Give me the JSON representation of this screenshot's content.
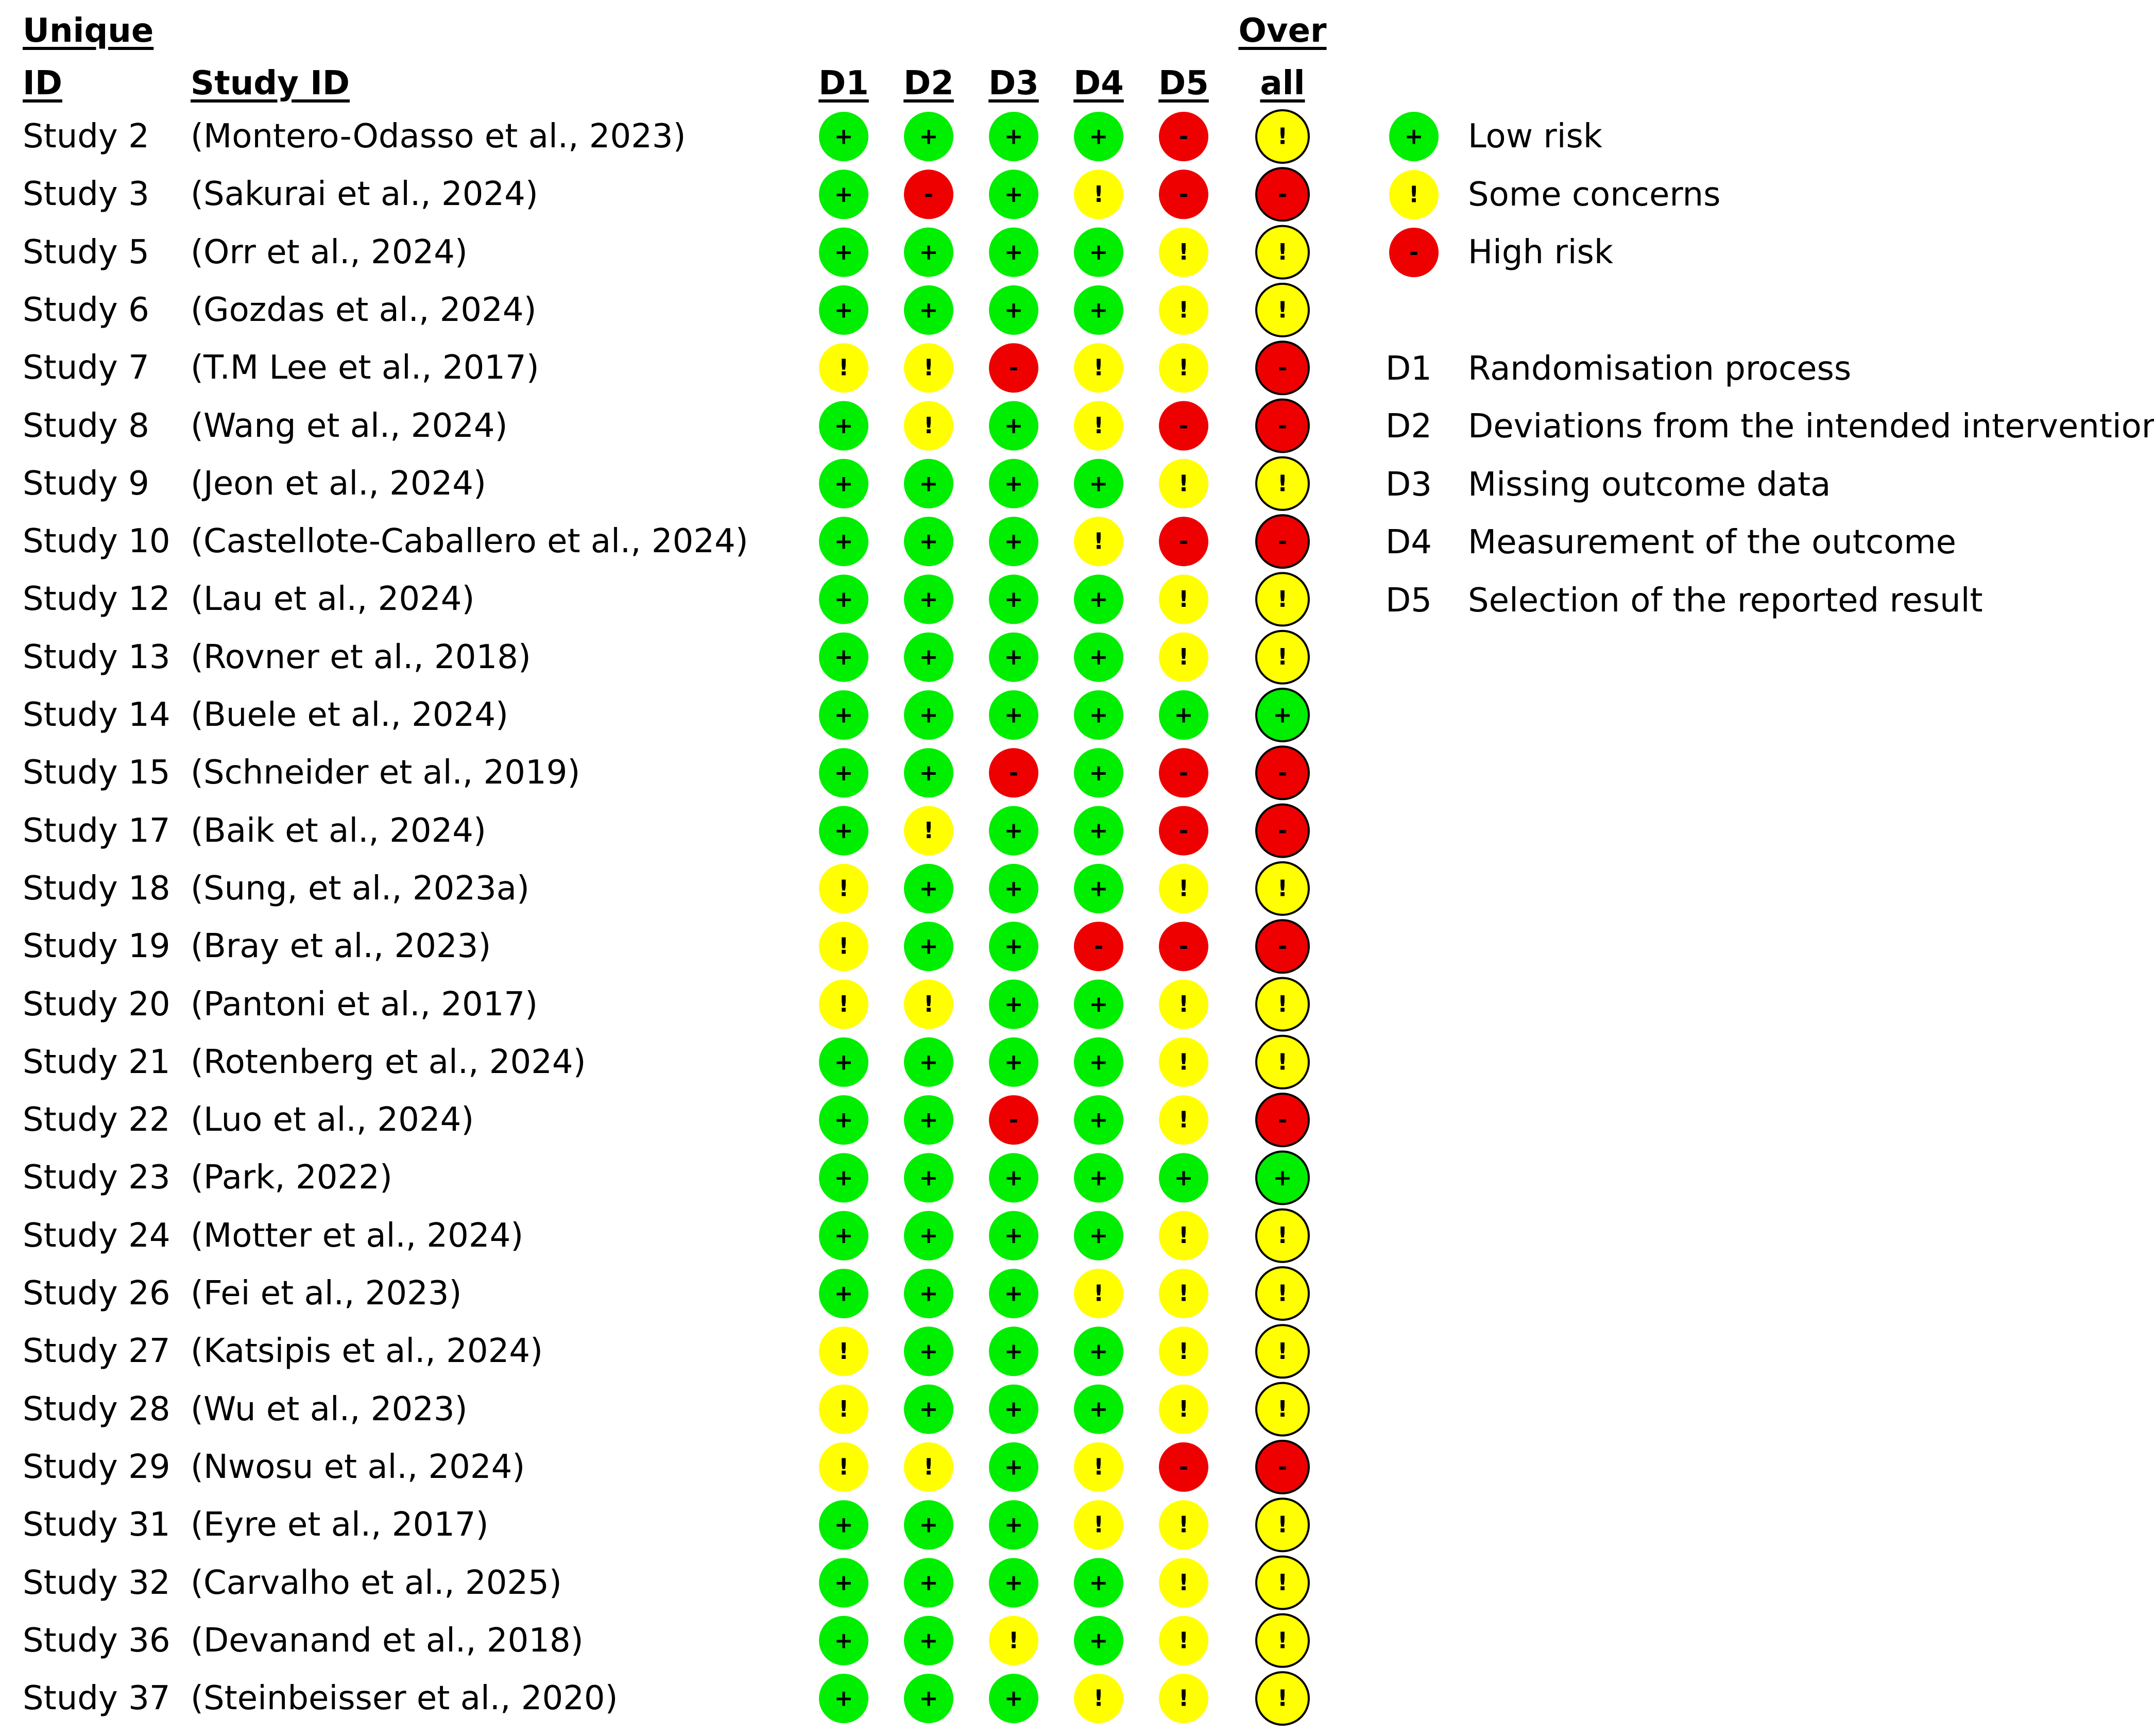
{
  "headers": {
    "unique_id_line1": "Unique",
    "unique_id_line2": "ID",
    "study_id": "Study ID",
    "overall_line1": "Over",
    "overall_line2": "all"
  },
  "colors": {
    "low": "#00ee00",
    "some": "#ffff00",
    "high": "#ee0000"
  },
  "symbols": {
    "low": "+",
    "some": "!",
    "high": "-"
  },
  "chart_data": {
    "type": "table",
    "domains": [
      "D1",
      "D2",
      "D3",
      "D4",
      "D5"
    ],
    "legend": {
      "judgements": [
        {
          "key": "low",
          "label": "Low risk"
        },
        {
          "key": "some",
          "label": "Some concerns"
        },
        {
          "key": "high",
          "label": "High risk"
        }
      ],
      "domains": [
        {
          "code": "D1",
          "label": "Randomisation process"
        },
        {
          "code": "D2",
          "label": "Deviations from the intended interventions"
        },
        {
          "code": "D3",
          "label": "Missing outcome data"
        },
        {
          "code": "D4",
          "label": "Measurement of the outcome"
        },
        {
          "code": "D5",
          "label": "Selection of the reported result"
        }
      ]
    },
    "rows": [
      {
        "id": "Study 2",
        "study": "(Montero-Odasso et al., 2023)",
        "d": [
          "low",
          "low",
          "low",
          "low",
          "high"
        ],
        "overall": "some"
      },
      {
        "id": "Study 3",
        "study": "(Sakurai et al., 2024)",
        "d": [
          "low",
          "high",
          "low",
          "some",
          "high"
        ],
        "overall": "high"
      },
      {
        "id": "Study 5",
        "study": "(Orr et al., 2024)",
        "d": [
          "low",
          "low",
          "low",
          "low",
          "some"
        ],
        "overall": "some"
      },
      {
        "id": "Study 6",
        "study": "(Gozdas et al., 2024)",
        "d": [
          "low",
          "low",
          "low",
          "low",
          "some"
        ],
        "overall": "some"
      },
      {
        "id": "Study 7",
        "study": "(T.M Lee et al., 2017)",
        "d": [
          "some",
          "some",
          "high",
          "some",
          "some"
        ],
        "overall": "high"
      },
      {
        "id": "Study 8",
        "study": "(Wang et al., 2024)",
        "d": [
          "low",
          "some",
          "low",
          "some",
          "high"
        ],
        "overall": "high"
      },
      {
        "id": "Study 9",
        "study": "(Jeon et al., 2024)",
        "d": [
          "low",
          "low",
          "low",
          "low",
          "some"
        ],
        "overall": "some"
      },
      {
        "id": "Study 10",
        "study": "(Castellote-Caballero et al., 2024)",
        "d": [
          "low",
          "low",
          "low",
          "some",
          "high"
        ],
        "overall": "high"
      },
      {
        "id": "Study 12",
        "study": "(Lau et al., 2024)",
        "d": [
          "low",
          "low",
          "low",
          "low",
          "some"
        ],
        "overall": "some"
      },
      {
        "id": "Study 13",
        "study": "(Rovner et al., 2018)",
        "d": [
          "low",
          "low",
          "low",
          "low",
          "some"
        ],
        "overall": "some"
      },
      {
        "id": "Study 14",
        "study": "(Buele et al., 2024)",
        "d": [
          "low",
          "low",
          "low",
          "low",
          "low"
        ],
        "overall": "low"
      },
      {
        "id": "Study 15",
        "study": "(Schneider et al., 2019)",
        "d": [
          "low",
          "low",
          "high",
          "low",
          "high"
        ],
        "overall": "high"
      },
      {
        "id": "Study 17",
        "study": "(Baik et al., 2024)",
        "d": [
          "low",
          "some",
          "low",
          "low",
          "high"
        ],
        "overall": "high"
      },
      {
        "id": "Study 18",
        "study": "(Sung, et al., 2023a)",
        "d": [
          "some",
          "low",
          "low",
          "low",
          "some"
        ],
        "overall": "some"
      },
      {
        "id": "Study 19",
        "study": "(Bray et al., 2023)",
        "d": [
          "some",
          "low",
          "low",
          "high",
          "high"
        ],
        "overall": "high"
      },
      {
        "id": "Study 20",
        "study": "(Pantoni et al., 2017)",
        "d": [
          "some",
          "some",
          "low",
          "low",
          "some"
        ],
        "overall": "some"
      },
      {
        "id": "Study 21",
        "study": "(Rotenberg et al., 2024)",
        "d": [
          "low",
          "low",
          "low",
          "low",
          "some"
        ],
        "overall": "some"
      },
      {
        "id": "Study 22",
        "study": "(Luo et al., 2024)",
        "d": [
          "low",
          "low",
          "high",
          "low",
          "some"
        ],
        "overall": "high"
      },
      {
        "id": "Study 23",
        "study": "(Park, 2022)",
        "d": [
          "low",
          "low",
          "low",
          "low",
          "low"
        ],
        "overall": "low"
      },
      {
        "id": "Study 24",
        "study": "(Motter et al., 2024)",
        "d": [
          "low",
          "low",
          "low",
          "low",
          "some"
        ],
        "overall": "some"
      },
      {
        "id": "Study 26",
        "study": "(Fei et al., 2023)",
        "d": [
          "low",
          "low",
          "low",
          "some",
          "some"
        ],
        "overall": "some"
      },
      {
        "id": "Study 27",
        "study": "(Katsipis et al., 2024)",
        "d": [
          "some",
          "low",
          "low",
          "low",
          "some"
        ],
        "overall": "some"
      },
      {
        "id": "Study 28",
        "study": "(Wu et al., 2023)",
        "d": [
          "some",
          "low",
          "low",
          "low",
          "some"
        ],
        "overall": "some"
      },
      {
        "id": "Study 29",
        "study": "(Nwosu et al., 2024)",
        "d": [
          "some",
          "some",
          "low",
          "some",
          "high"
        ],
        "overall": "high"
      },
      {
        "id": "Study 31",
        "study": "(Eyre et al., 2017)",
        "d": [
          "low",
          "low",
          "low",
          "some",
          "some"
        ],
        "overall": "some"
      },
      {
        "id": "Study 32",
        "study": "(Carvalho et al., 2025)",
        "d": [
          "low",
          "low",
          "low",
          "low",
          "some"
        ],
        "overall": "some"
      },
      {
        "id": "Study 36",
        "study": "(Devanand et al., 2018)",
        "d": [
          "low",
          "low",
          "some",
          "low",
          "some"
        ],
        "overall": "some"
      },
      {
        "id": "Study 37",
        "study": "(Steinbeisser et al., 2020)",
        "d": [
          "low",
          "low",
          "low",
          "some",
          "some"
        ],
        "overall": "some"
      }
    ]
  }
}
